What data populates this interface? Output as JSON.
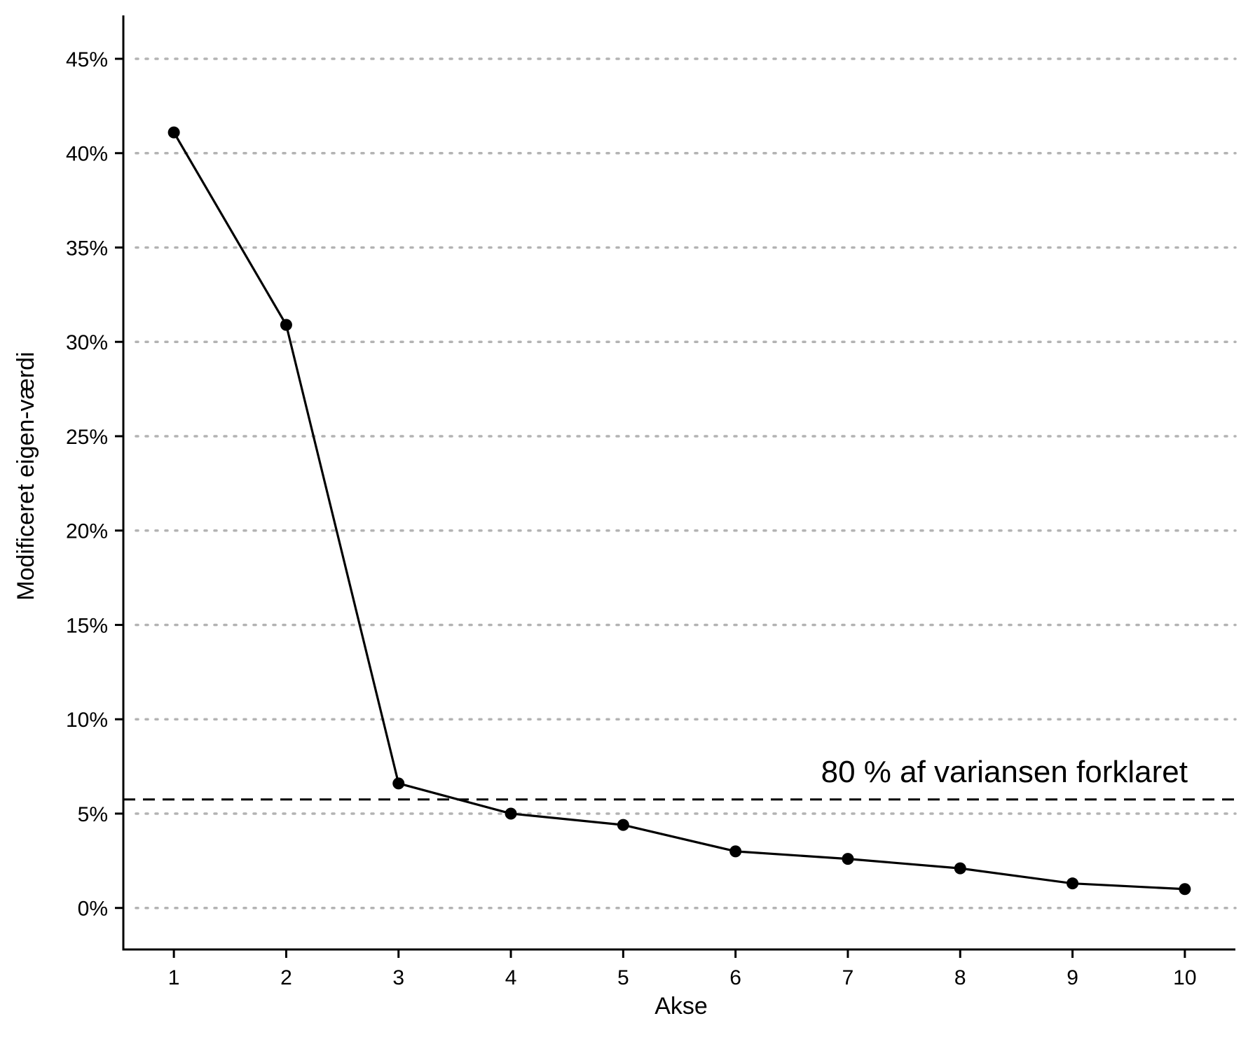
{
  "chart_data": {
    "type": "line",
    "title": "",
    "xlabel": "Akse",
    "ylabel": "Modificeret eigen-værdi",
    "x": [
      1,
      2,
      3,
      4,
      5,
      6,
      7,
      8,
      9,
      10
    ],
    "x_tick_labels": [
      "1",
      "2",
      "3",
      "4",
      "5",
      "6",
      "7",
      "8",
      "9",
      "10"
    ],
    "xlim": [
      0.55,
      10.45
    ],
    "y_ticks": [
      0,
      5,
      10,
      15,
      20,
      25,
      30,
      35,
      40,
      45
    ],
    "y_tick_labels": [
      "0%",
      "5%",
      "10%",
      "15%",
      "20%",
      "25%",
      "30%",
      "35%",
      "40%",
      "45%"
    ],
    "ylim": [
      -2.2,
      47.3
    ],
    "series": [
      {
        "values": [
          41.1,
          30.9,
          6.6,
          5.0,
          4.4,
          3.0,
          2.6,
          2.1,
          1.3,
          1.0
        ]
      }
    ],
    "reference_line": {
      "y": 5.75,
      "style": "dashed",
      "label": "80 % af variansen forklaret"
    },
    "grid": {
      "horizontal": true,
      "vertical": false,
      "style": "dotted"
    },
    "legend": "none",
    "colors": {
      "line": "#000000",
      "grid": "#b3b3b3",
      "reference": "#000000"
    }
  }
}
